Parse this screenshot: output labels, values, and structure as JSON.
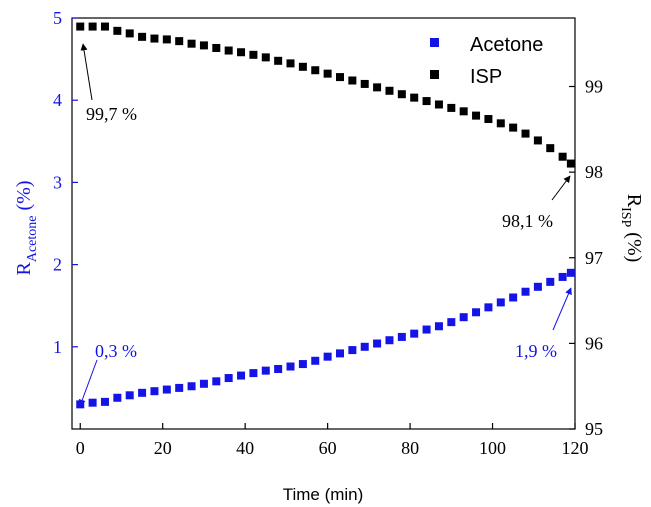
{
  "colors": {
    "acetone": "#1414e6",
    "isp": "#000000",
    "axis": "#000000"
  },
  "chart_data": {
    "type": "scatter",
    "title": "",
    "xlabel": "Time (min)",
    "ylabel_left": {
      "main": "R",
      "sub": "Acetone",
      "unit": " (%)"
    },
    "ylabel_right": {
      "main": "R",
      "sub": "ISP",
      "unit": " (%)"
    },
    "xlim": [
      -2,
      120
    ],
    "ylim_left": [
      0,
      5
    ],
    "ylim_right": [
      95,
      99.8
    ],
    "x_ticks": [
      0,
      20,
      40,
      60,
      80,
      100,
      120
    ],
    "y_ticks_left": [
      1,
      2,
      3,
      4,
      5
    ],
    "y_ticks_right": [
      95,
      96,
      97,
      98,
      99
    ],
    "legend": {
      "placement": "top-right",
      "entries": [
        "Acetone",
        "ISP"
      ]
    },
    "series": [
      {
        "name": "Acetone",
        "axis": "left",
        "marker": "square",
        "x": [
          0,
          3,
          6,
          9,
          12,
          15,
          18,
          21,
          24,
          27,
          30,
          33,
          36,
          39,
          42,
          45,
          48,
          51,
          54,
          57,
          60,
          63,
          66,
          69,
          72,
          75,
          78,
          81,
          84,
          87,
          90,
          93,
          96,
          99,
          102,
          105,
          108,
          111,
          114,
          117,
          119
        ],
        "y": [
          0.3,
          0.32,
          0.33,
          0.38,
          0.41,
          0.44,
          0.46,
          0.48,
          0.5,
          0.52,
          0.55,
          0.58,
          0.62,
          0.65,
          0.68,
          0.71,
          0.73,
          0.76,
          0.79,
          0.83,
          0.88,
          0.92,
          0.96,
          1.0,
          1.04,
          1.08,
          1.12,
          1.16,
          1.21,
          1.25,
          1.3,
          1.36,
          1.42,
          1.48,
          1.54,
          1.6,
          1.67,
          1.73,
          1.79,
          1.85,
          1.9
        ]
      },
      {
        "name": "ISP",
        "axis": "right",
        "marker": "square",
        "x": [
          0,
          3,
          6,
          9,
          12,
          15,
          18,
          21,
          24,
          27,
          30,
          33,
          36,
          39,
          42,
          45,
          48,
          51,
          54,
          57,
          60,
          63,
          66,
          69,
          72,
          75,
          78,
          81,
          84,
          87,
          90,
          93,
          96,
          99,
          102,
          105,
          108,
          111,
          114,
          117,
          119
        ],
        "y": [
          99.7,
          99.7,
          99.7,
          99.65,
          99.62,
          99.58,
          99.56,
          99.55,
          99.53,
          99.5,
          99.48,
          99.45,
          99.42,
          99.4,
          99.37,
          99.34,
          99.3,
          99.27,
          99.23,
          99.19,
          99.15,
          99.11,
          99.07,
          99.03,
          98.99,
          98.95,
          98.91,
          98.87,
          98.83,
          98.79,
          98.75,
          98.71,
          98.66,
          98.62,
          98.57,
          98.52,
          98.45,
          98.37,
          98.28,
          98.18,
          98.1
        ]
      }
    ],
    "annotations": [
      {
        "text": "99,7 %",
        "series": "ISP",
        "x": 0,
        "y": 99.7
      },
      {
        "text": "98,1 %",
        "series": "ISP",
        "x": 119,
        "y": 98.1
      },
      {
        "text": "0,3 %",
        "series": "Acetone",
        "x": 0,
        "y": 0.3
      },
      {
        "text": "1,9 %",
        "series": "Acetone",
        "x": 119,
        "y": 1.9
      }
    ]
  }
}
